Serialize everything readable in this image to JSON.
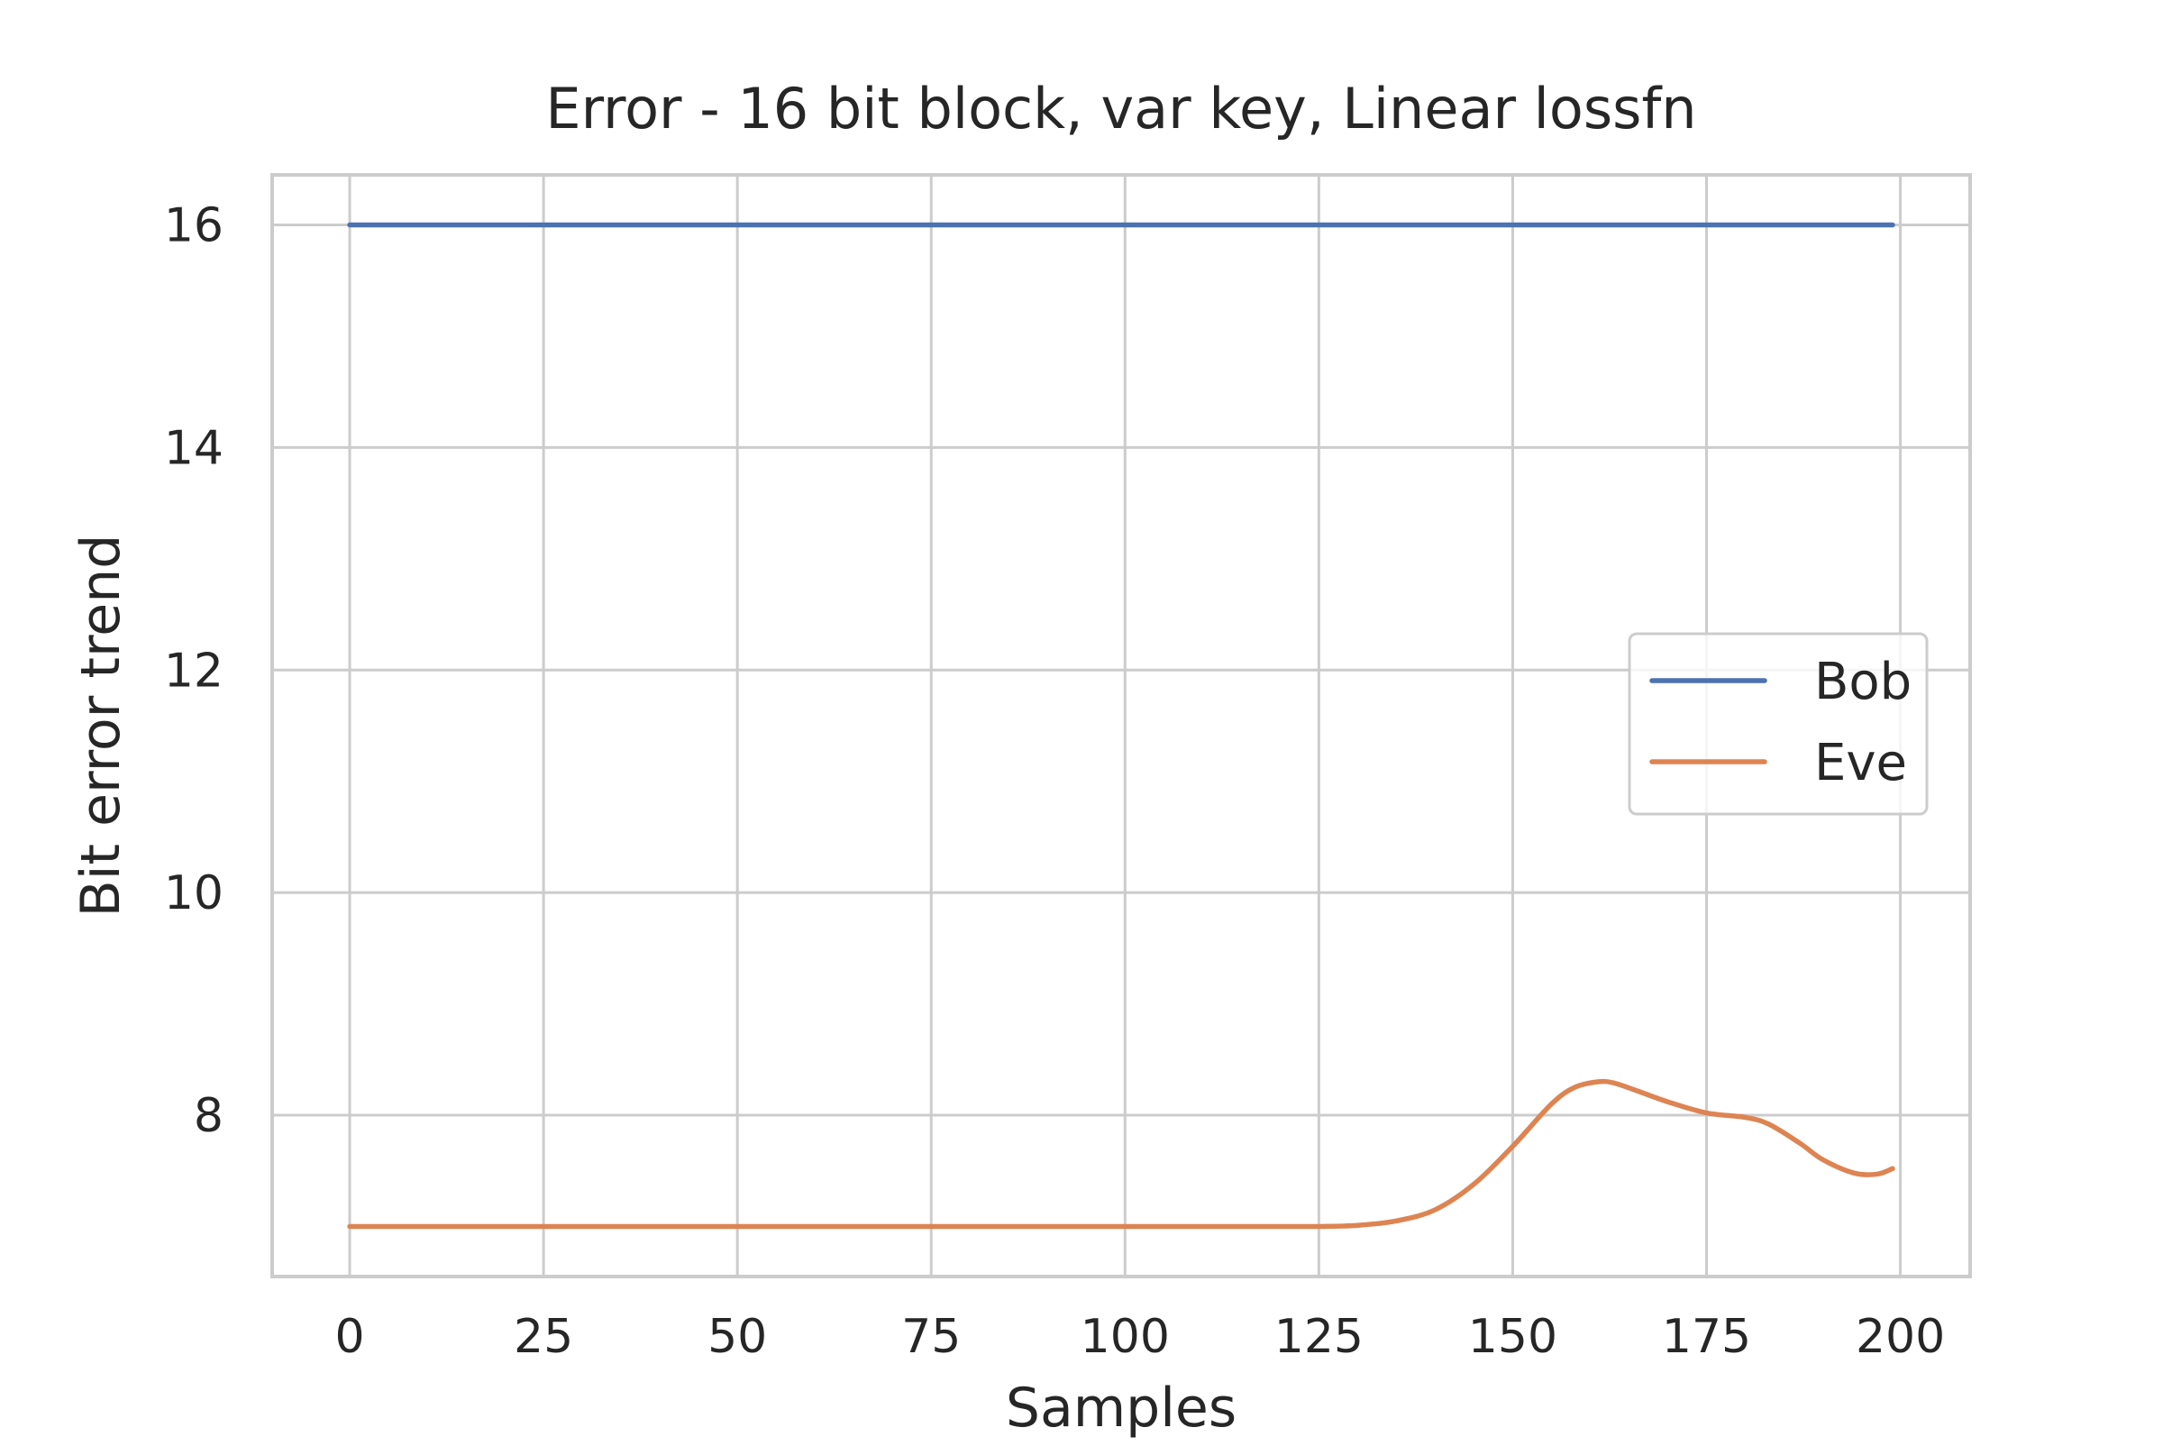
{
  "colors": {
    "background": "#ffffff",
    "grid": "#cccccc",
    "text": "#262626"
  },
  "chart_data": {
    "type": "line",
    "title": "Error - 16 bit block, var key, Linear lossfn",
    "xlabel": "Samples",
    "ylabel": "Bit error trend",
    "xlim": [
      -10,
      209
    ],
    "ylim": [
      6.55,
      16.45
    ],
    "xticks": [
      0,
      25,
      50,
      75,
      100,
      125,
      150,
      175,
      200
    ],
    "yticks": [
      8,
      10,
      12,
      14,
      16
    ],
    "grid": true,
    "legend_position": "center-right",
    "series": [
      {
        "name": "Bob",
        "color": "#4c72b0",
        "x": [
          0,
          199
        ],
        "y": [
          16,
          16
        ]
      },
      {
        "name": "Eve",
        "color": "#dd8452",
        "x": [
          0,
          25,
          50,
          75,
          100,
          120,
          125,
          130,
          135,
          140,
          145,
          150,
          155,
          158,
          161,
          163,
          166,
          170,
          175,
          180,
          183,
          187,
          190,
          194,
          197,
          199
        ],
        "y": [
          7.0,
          7.0,
          7.0,
          7.0,
          7.0,
          7.0,
          7.0,
          7.01,
          7.05,
          7.15,
          7.38,
          7.72,
          8.1,
          8.25,
          8.3,
          8.29,
          8.22,
          8.12,
          8.02,
          7.98,
          7.92,
          7.75,
          7.6,
          7.48,
          7.47,
          7.52
        ]
      }
    ]
  }
}
